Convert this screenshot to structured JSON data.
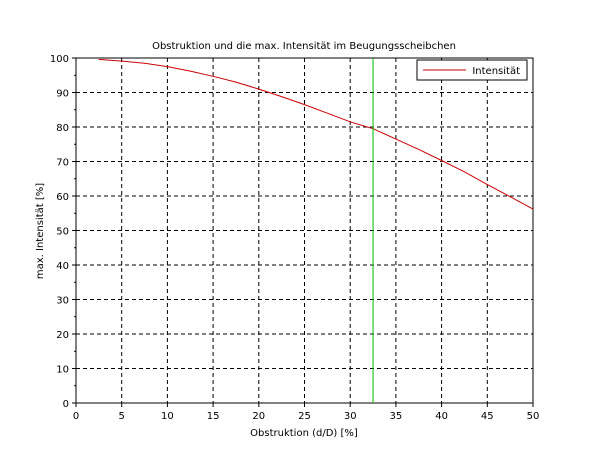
{
  "chart_data": {
    "type": "line",
    "title": "Obstruktion und die max. Intensität im Beugungsscheibchen",
    "xlabel": "Obstruktion (d/D) [%]",
    "ylabel": "max. Intensität [%]",
    "xlim": [
      0,
      50
    ],
    "ylim": [
      0,
      100
    ],
    "xticks": [
      0,
      5,
      10,
      15,
      20,
      25,
      30,
      35,
      40,
      45,
      50
    ],
    "yticks": [
      0,
      10,
      20,
      30,
      40,
      50,
      60,
      70,
      80,
      90,
      100
    ],
    "grid": true,
    "legend_position": "top-right",
    "series": [
      {
        "name": "Intensität",
        "color": "#cc0000",
        "x": [
          2.5,
          5,
          7.5,
          10,
          12.5,
          15,
          17.5,
          20,
          22.5,
          25,
          27.5,
          30,
          32.5,
          35,
          37.5,
          40,
          42.5,
          45,
          47.5,
          50
        ],
        "y": [
          99.6,
          99.1,
          98.5,
          97.5,
          96.2,
          94.7,
          93.0,
          91.0,
          88.8,
          86.5,
          84.0,
          81.5,
          79.5,
          76.5,
          73.5,
          70.3,
          67.0,
          63.3,
          59.8,
          56.2
        ]
      }
    ],
    "vertical_lines": [
      {
        "x": 32.5,
        "color": "#00bb00"
      }
    ]
  }
}
